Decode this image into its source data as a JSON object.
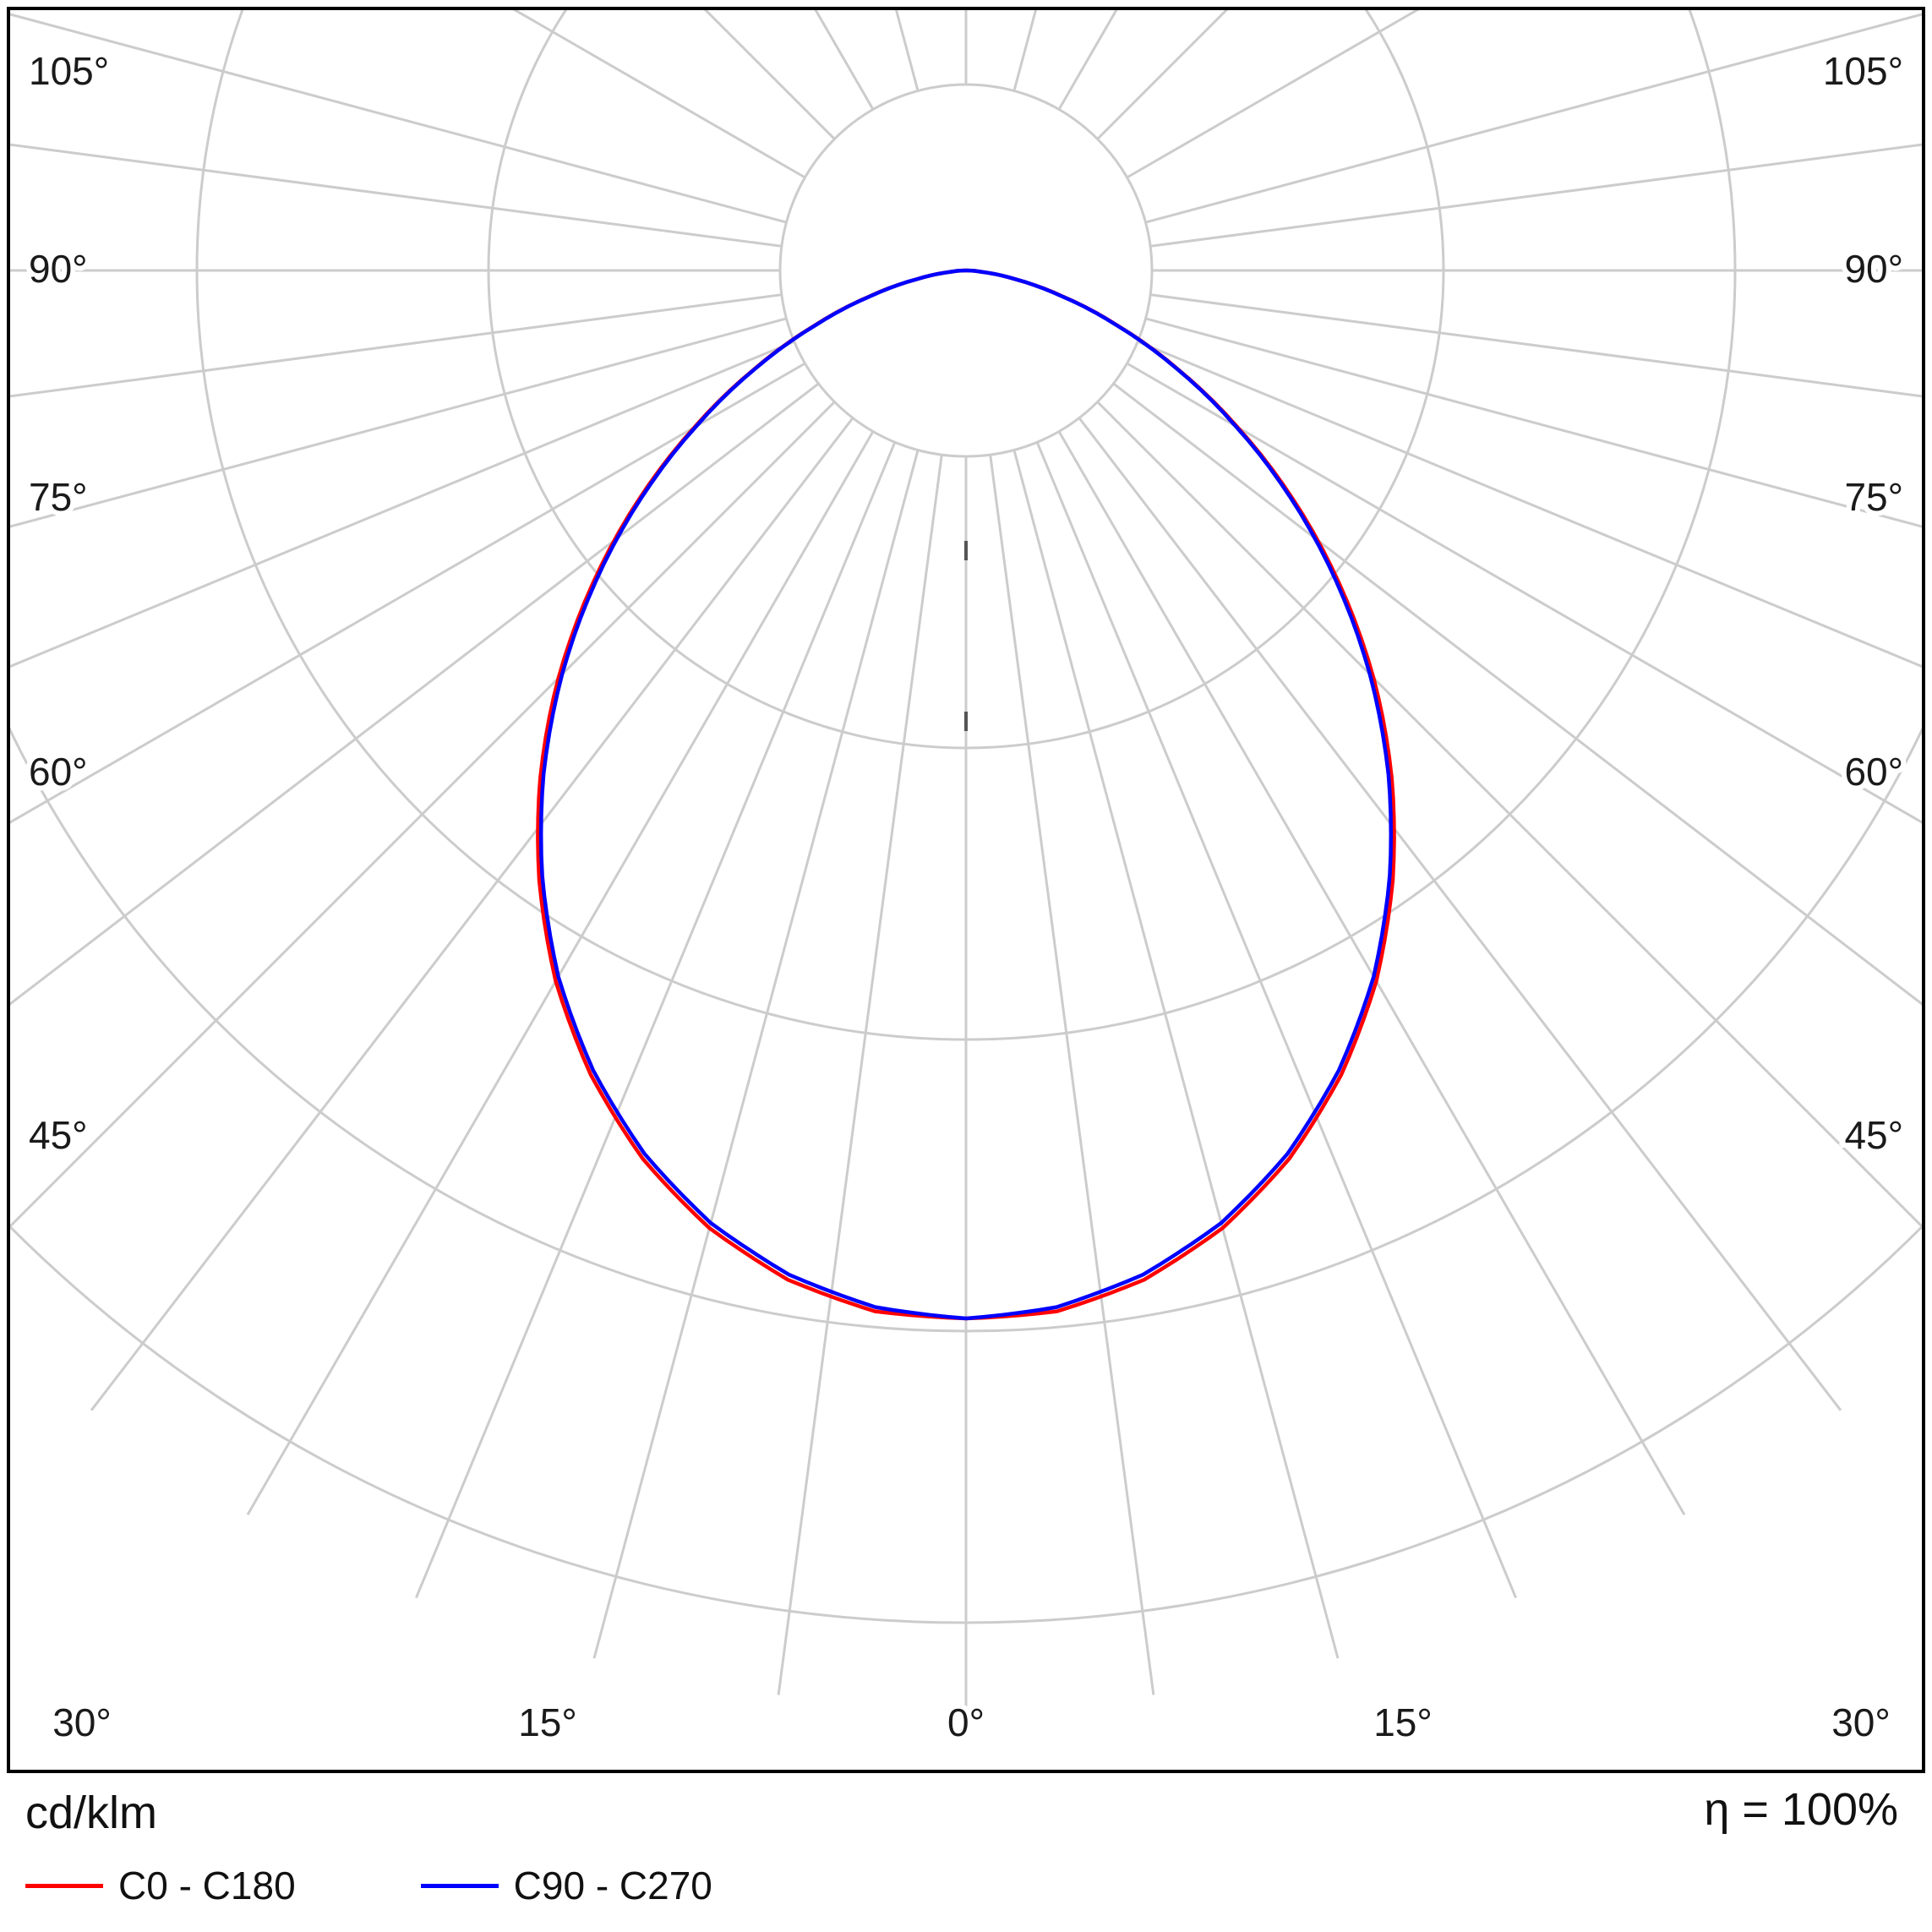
{
  "chart_data": {
    "type": "polar",
    "chart_kind": "luminous intensity distribution (photometric polar diagram)",
    "unit_label": "cd/klm",
    "efficiency_label": "η = 100%",
    "angle_labels": {
      "left": [
        "105°",
        "90°",
        "75°",
        "60°",
        "45°"
      ],
      "right": [
        "105°",
        "90°",
        "75°",
        "60°",
        "45°"
      ],
      "bottom": [
        "30°",
        "15°",
        "0°",
        "15°",
        "30°"
      ]
    },
    "grid": {
      "color": "#cccccc",
      "radial_circle_count": 5,
      "spoke_step_deg": 15,
      "minor_spoke_step_deg": 7.5
    },
    "radial_axis": {
      "labeled": false,
      "normalization": "intensity values are relative to the maximum at 0° (nadir); radial gridlines carry no printed values"
    },
    "series": [
      {
        "name": "C0 - C180",
        "color": "#ff0000",
        "symmetric_about_0deg": true,
        "angles_deg": [
          0,
          5,
          10,
          15,
          20,
          25,
          30,
          35,
          40,
          45,
          50,
          55,
          60,
          65,
          70,
          75,
          80,
          85,
          90
        ],
        "values_relative": [
          1.0,
          0.997,
          0.978,
          0.946,
          0.902,
          0.847,
          0.783,
          0.71,
          0.632,
          0.55,
          0.465,
          0.381,
          0.299,
          0.223,
          0.154,
          0.095,
          0.047,
          0.014,
          0
        ]
      },
      {
        "name": "C90 - C270",
        "color": "#0000ff",
        "symmetric_about_0deg": true,
        "angles_deg": [
          0,
          5,
          10,
          15,
          20,
          25,
          30,
          35,
          40,
          45,
          50,
          55,
          60,
          65,
          70,
          75,
          80,
          85,
          90
        ],
        "values_relative": [
          1.0,
          0.993,
          0.973,
          0.941,
          0.897,
          0.842,
          0.778,
          0.705,
          0.627,
          0.545,
          0.461,
          0.378,
          0.297,
          0.222,
          0.153,
          0.094,
          0.047,
          0.014,
          0
        ]
      }
    ]
  }
}
